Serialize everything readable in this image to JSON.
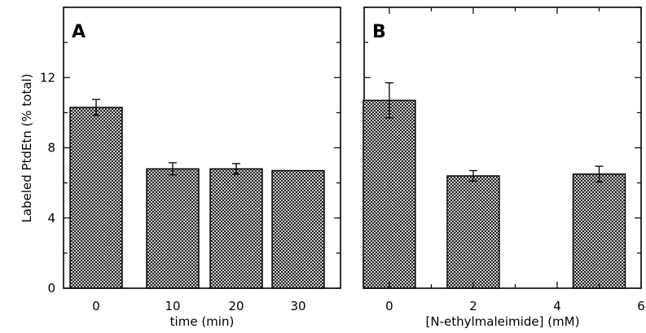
{
  "chart_data": [
    {
      "type": "bar",
      "panel_label": "A",
      "ylabel": "Labeled PtdEtn (% total)",
      "xlabel": "time (min)",
      "ylim": [
        0,
        16
      ],
      "yticks": [
        0,
        4,
        8,
        12
      ],
      "x_axis": "categorical",
      "categories": [
        "0",
        "10",
        "20",
        "30"
      ],
      "values": [
        10.3,
        6.8,
        6.8,
        6.7
      ],
      "errors": [
        0.45,
        0.35,
        0.3,
        0.0
      ]
    },
    {
      "type": "bar",
      "panel_label": "B",
      "xlabel": "[N-ethylmaleimide] (mM)",
      "ylim": [
        0,
        16
      ],
      "yticks": [
        0,
        4,
        8,
        12
      ],
      "xlim": [
        -0.6,
        6
      ],
      "xticks": [
        0,
        2,
        4,
        6
      ],
      "x": [
        0,
        2,
        5
      ],
      "values": [
        10.7,
        6.4,
        6.5
      ],
      "errors": [
        1.0,
        0.3,
        0.45
      ]
    }
  ]
}
